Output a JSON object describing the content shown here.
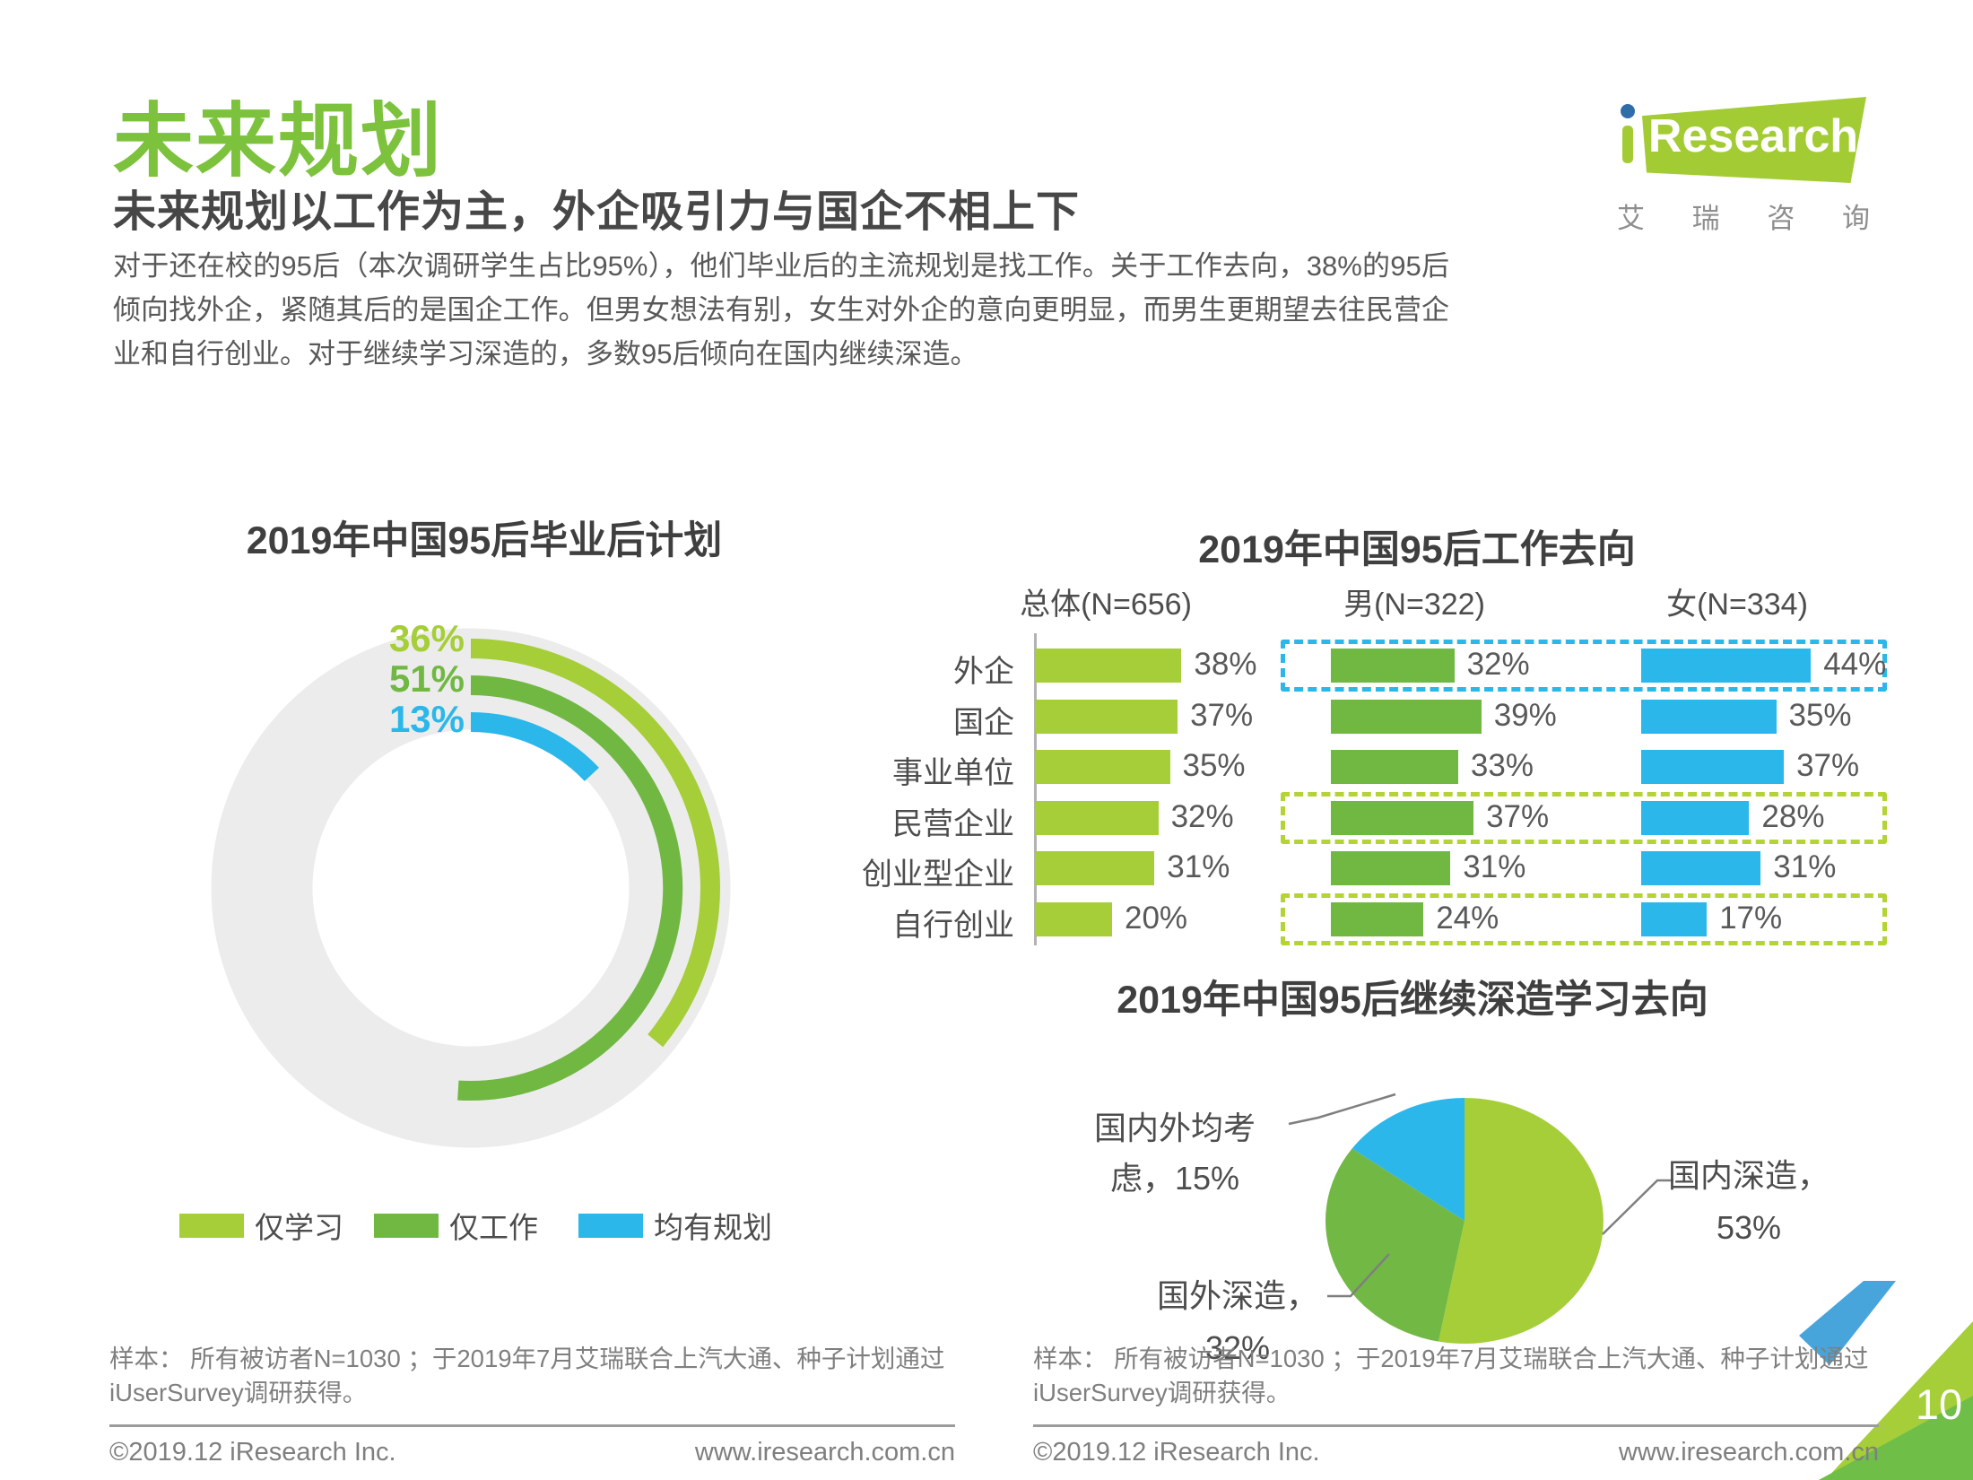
{
  "header": {
    "title": "未来规划",
    "subtitle": "未来规划以工作为主，外企吸引力与国企不相上下",
    "paragraph": "对于还在校的95后（本次调研学生占比95%），他们毕业后的主流规划是找工作。关于工作去向，38%的95后倾向找外企，紧随其后的是国企工作。但男女想法有别，女生对外企的意向更明显，而男生更期望去往民营企业和自行创业。对于继续学习深造的，多数95后倾向在国内继续深造。"
  },
  "logo": {
    "brand": "Research",
    "caption": "艾瑞咨询"
  },
  "colors": {
    "lime": "#A5CE39",
    "green": "#71B843",
    "blue": "#2BB7E9",
    "dashed_lime": "#B4D334",
    "title_green": "#7CC23C",
    "ring_gray": "#ECECEC",
    "corner_blue": "#47A5DB",
    "corner_green": "#6FBE47"
  },
  "chart_data": [
    {
      "type": "pie",
      "variant": "concentric-donut-arcs",
      "title": "2019年中国95后毕业后计划",
      "slices": [
        {
          "label": "仅学习",
          "value": 36,
          "color": "#A5CE39"
        },
        {
          "label": "仅工作",
          "value": 51,
          "color": "#71B843"
        },
        {
          "label": "均有规划",
          "value": 13,
          "color": "#2BB7E9"
        }
      ],
      "value_suffix": "%",
      "legend_position": "bottom",
      "start_angle_deg": 0,
      "direction": "clockwise"
    },
    {
      "type": "bar",
      "variant": "horizontal-grouped",
      "title": "2019年中国95后工作去向",
      "categories": [
        "外企",
        "国企",
        "事业单位",
        "民营企业",
        "创业型企业",
        "自行创业"
      ],
      "series": [
        {
          "name": "总体(N=656)",
          "color": "#A5CE39",
          "values": [
            38,
            37,
            35,
            32,
            31,
            20
          ]
        },
        {
          "name": "男(N=322)",
          "color": "#71B843",
          "values": [
            32,
            39,
            33,
            37,
            31,
            24
          ]
        },
        {
          "name": "女(N=334)",
          "color": "#2BB7E9",
          "values": [
            44,
            35,
            37,
            28,
            31,
            17
          ]
        }
      ],
      "value_suffix": "%",
      "xlim": [
        0,
        50
      ],
      "grid": false,
      "highlight_boxes": [
        {
          "category": "外企",
          "row": 0,
          "color": "#2BB7E9",
          "style": "dashed"
        },
        {
          "category": "民营企业",
          "row": 3,
          "color": "#B4D334",
          "style": "dashed"
        },
        {
          "category": "自行创业",
          "row": 5,
          "color": "#B4D334",
          "style": "dashed"
        }
      ]
    },
    {
      "type": "pie",
      "title": "2019年中国95后继续深造学习去向",
      "slices": [
        {
          "label": "国内深造",
          "value": 53,
          "color": "#A5CE39"
        },
        {
          "label": "国外深造",
          "value": 32,
          "color": "#72B845"
        },
        {
          "label": "国内外均考虑",
          "value": 15,
          "color": "#2BB7E9"
        }
      ],
      "value_suffix": "%",
      "start_angle_deg": 0,
      "direction": "clockwise"
    }
  ],
  "footer": {
    "sample_note": "样本： 所有被访者N=1030 ；于2019年7月艾瑞联合上汽大通、种子计划通过iUserSurvey调研获得。",
    "copyright": "©2019.12 iResearch Inc.",
    "website": "www.iresearch.com.cn",
    "page_number": "10"
  }
}
